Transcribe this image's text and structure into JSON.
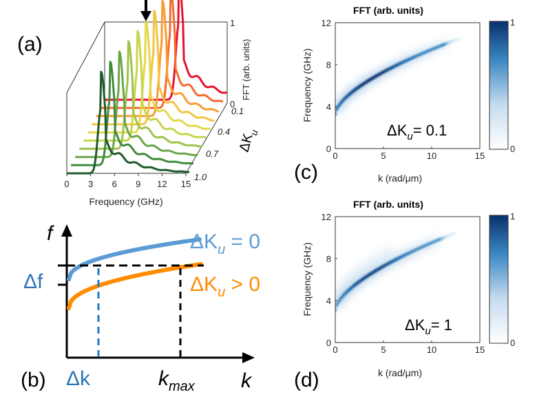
{
  "panel_labels": {
    "a": "(a)",
    "b": "(b)",
    "c": "(c)",
    "d": "(d)"
  },
  "colors": {
    "waterfall_start": "#e8112d",
    "waterfall_end": "#1e5a2a",
    "upper_curve": "#5b9bd5",
    "lower_curve": "#ff8c00",
    "map_low": "#ffffff",
    "map_high": "#08306b"
  },
  "chart_data": [
    {
      "id": "a",
      "type": "line",
      "subtype": "waterfall",
      "xlabel": "Frequency (GHz)",
      "xticks": [
        "0",
        "3",
        "6",
        "9",
        "12",
        "15"
      ],
      "xlim": [
        0,
        15
      ],
      "zlabel": "FFT (arb. units)",
      "zticks": [
        "0",
        "1"
      ],
      "depth_label": "ΔK",
      "depth_label_sub": "u",
      "depth_ticks": [
        "0.1",
        "0.4",
        "0.7",
        "1.0"
      ],
      "series_dKu": [
        0.1,
        0.2,
        0.3,
        0.4,
        0.5,
        0.6,
        0.7,
        0.8,
        0.9,
        1.0
      ],
      "peak_freq_ghz": [
        9.1,
        8.6,
        8.1,
        7.6,
        7.1,
        6.6,
        6.0,
        5.4,
        4.8,
        4.2
      ],
      "arrow_annotation": "arrow marks the main peak of the ΔKu = 0.1 spectrum"
    },
    {
      "id": "b",
      "type": "line",
      "subtype": "schematic",
      "ylabel": "f",
      "xlabel": "k",
      "series": [
        {
          "name": "ΔK",
          "sub": "u",
          "suffix": " = 0",
          "color": "#5b9bd5"
        },
        {
          "name": "ΔK",
          "sub": "u",
          "suffix": " > 0",
          "color": "#ff8c00"
        }
      ],
      "annotations": {
        "delta_f": "Δf",
        "delta_k": "Δk",
        "k_max": "k",
        "k_max_sub": "max"
      }
    },
    {
      "id": "c",
      "type": "heatmap",
      "title": "FFT (arb. units)",
      "xlabel": "k (rad/μm)",
      "ylabel": "Frequency (GHz)",
      "xlim": [
        0,
        15
      ],
      "ylim": [
        0,
        12
      ],
      "xticks": [
        "0",
        "5",
        "10",
        "15"
      ],
      "yticks": [
        "0",
        "4",
        "8",
        "12"
      ],
      "colorbar_ticks": [
        "0",
        "1"
      ],
      "annotation_prefix": "ΔK",
      "annotation_sub": "u",
      "annotation_suffix": "= 0.1",
      "dKu": 0.1,
      "dispersion": {
        "f0_ghz": 3.3,
        "kmax": 11.5,
        "fmax_ghz": 10.0
      }
    },
    {
      "id": "d",
      "type": "heatmap",
      "title": "FFT (arb. units)",
      "xlabel": "k (rad/μm)",
      "ylabel": "Frequency (GHz)",
      "xlim": [
        0,
        15
      ],
      "ylim": [
        0,
        12
      ],
      "xticks": [
        "0",
        "5",
        "10",
        "15"
      ],
      "yticks": [
        "0",
        "4",
        "8",
        "12"
      ],
      "colorbar_ticks": [
        "0",
        "1"
      ],
      "annotation_prefix": "ΔK",
      "annotation_sub": "u",
      "annotation_suffix": "= 1",
      "dKu": 1.0,
      "dispersion": {
        "f0_ghz": 3.1,
        "kmax": 11.0,
        "fmax_ghz": 9.9
      }
    }
  ]
}
